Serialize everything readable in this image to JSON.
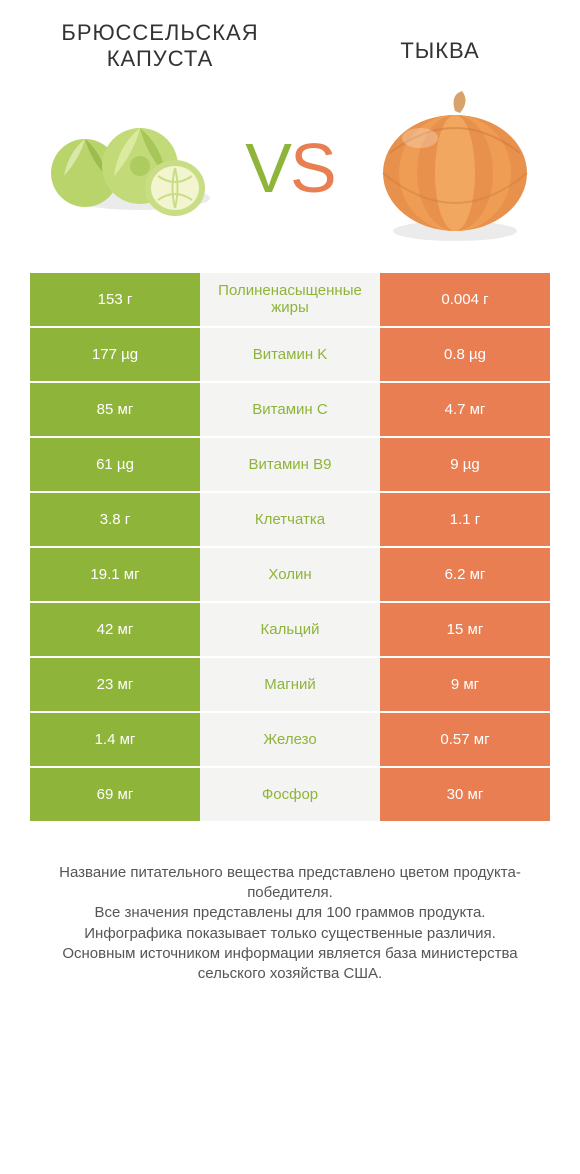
{
  "header": {
    "left_title": "БРЮССЕЛЬСКАЯ КАПУСТА",
    "right_title": "ТЫКВА",
    "vs_v": "V",
    "vs_s": "S"
  },
  "colors": {
    "left": "#8fb43a",
    "right": "#e97e53",
    "mid_bg": "#f4f4f2",
    "text": "#333333"
  },
  "rows": [
    {
      "left": "153 г",
      "label": "Полиненасыщенные жиры",
      "right": "0.004 г",
      "winner": "left"
    },
    {
      "left": "177 µg",
      "label": "Витамин K",
      "right": "0.8 µg",
      "winner": "left"
    },
    {
      "left": "85 мг",
      "label": "Витамин C",
      "right": "4.7 мг",
      "winner": "left"
    },
    {
      "left": "61 µg",
      "label": "Витамин B9",
      "right": "9 µg",
      "winner": "left"
    },
    {
      "left": "3.8 г",
      "label": "Клетчатка",
      "right": "1.1 г",
      "winner": "left"
    },
    {
      "left": "19.1 мг",
      "label": "Холин",
      "right": "6.2 мг",
      "winner": "left"
    },
    {
      "left": "42 мг",
      "label": "Кальций",
      "right": "15 мг",
      "winner": "left"
    },
    {
      "left": "23 мг",
      "label": "Магний",
      "right": "9 мг",
      "winner": "left"
    },
    {
      "left": "1.4 мг",
      "label": "Железо",
      "right": "0.57 мг",
      "winner": "left"
    },
    {
      "left": "69 мг",
      "label": "Фосфор",
      "right": "30 мг",
      "winner": "left"
    }
  ],
  "footer": {
    "line1": "Название питательного вещества представлено цветом продукта-победителя.",
    "line2": "Все значения представлены для 100 граммов продукта.",
    "line3": "Инфографика показывает только существенные различия.",
    "line4": "Основным источником информации является база министерства сельского хозяйства США."
  }
}
